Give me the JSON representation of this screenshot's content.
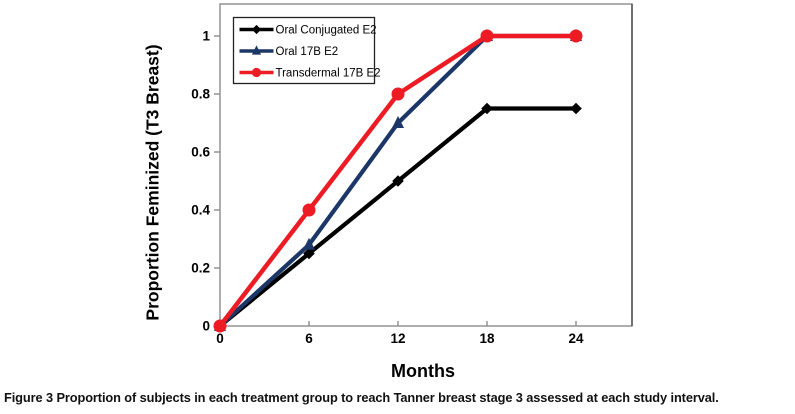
{
  "figure": {
    "caption_label": "Figure 3",
    "caption_text": "Proportion of subjects in each treatment group to reach Tanner breast stage 3 assessed at each study interval."
  },
  "chart_data": {
    "type": "line",
    "title": "",
    "xlabel": "Months",
    "ylabel": "Proportion Feminized (T3 Breast)",
    "x": [
      0,
      6,
      12,
      18,
      24
    ],
    "x_tick_labels": [
      "0",
      "6",
      "12",
      "18",
      "24"
    ],
    "y_tick_values": [
      0,
      0.2,
      0.4,
      0.6,
      0.8,
      1
    ],
    "y_tick_labels": [
      "0",
      "0.2",
      "0.4",
      "0.6",
      "0.8",
      "1"
    ],
    "xlim": [
      0,
      27.8
    ],
    "ylim": [
      0,
      1.11
    ],
    "grid": false,
    "legend_position": "top-left-inside",
    "series": [
      {
        "name": "Oral Conjugated E2",
        "color": "#000000",
        "marker": "diamond",
        "values": [
          0,
          0.25,
          0.5,
          0.75,
          0.75
        ]
      },
      {
        "name": "Oral 17B E2",
        "color": "#1b3667",
        "marker": "triangle",
        "values": [
          0,
          0.28,
          0.7,
          1.0,
          1.0
        ]
      },
      {
        "name": "Transdermal 17B E2",
        "color": "#ed1c24",
        "marker": "circle",
        "values": [
          0,
          0.4,
          0.8,
          1.0,
          1.0
        ]
      }
    ],
    "colors": {
      "axis_line": "#8c8c8c",
      "frame_right": "#4a4a4a",
      "legend_border": "#222222",
      "text": "#000000"
    }
  }
}
